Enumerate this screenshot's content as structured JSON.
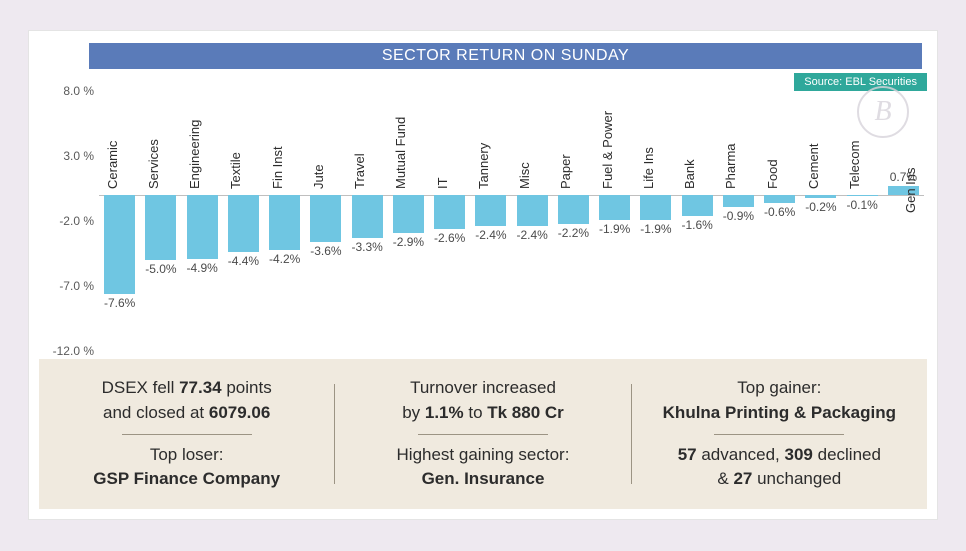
{
  "title": "SECTOR RETURN ON SUNDAY",
  "source": "Source: EBL Securities",
  "watermark": "B",
  "chart": {
    "type": "bar",
    "y_ticks": [
      8.0,
      3.0,
      -2.0,
      -7.0,
      -12.0
    ],
    "ymax": 8.0,
    "ymin": -12.0,
    "baseline": 0,
    "bar_color": "#6fc6e2",
    "background_color": "#ffffff",
    "axis_color": "#bfbfbf",
    "label_fontsize": 13,
    "value_fontsize": 12,
    "title_fontsize": 16,
    "categories": [
      {
        "label": "Ceramic",
        "value": -7.6,
        "text": "-7.6%"
      },
      {
        "label": "Services",
        "value": -5.0,
        "text": "-5.0%"
      },
      {
        "label": "Engineering",
        "value": -4.9,
        "text": "-4.9%"
      },
      {
        "label": "Textile",
        "value": -4.4,
        "text": "-4.4%"
      },
      {
        "label": "Fin Inst",
        "value": -4.2,
        "text": "-4.2%"
      },
      {
        "label": "Jute",
        "value": -3.6,
        "text": "-3.6%"
      },
      {
        "label": "Travel",
        "value": -3.3,
        "text": "-3.3%"
      },
      {
        "label": "Mutual Fund",
        "value": -2.9,
        "text": "-2.9%"
      },
      {
        "label": "IT",
        "value": -2.6,
        "text": "-2.6%"
      },
      {
        "label": "Tannery",
        "value": -2.4,
        "text": "-2.4%"
      },
      {
        "label": "Misc",
        "value": -2.4,
        "text": "-2.4%"
      },
      {
        "label": "Paper",
        "value": -2.2,
        "text": "-2.2%"
      },
      {
        "label": "Fuel & Power",
        "value": -1.9,
        "text": "-1.9%"
      },
      {
        "label": "Life Ins",
        "value": -1.9,
        "text": "-1.9%"
      },
      {
        "label": "Bank",
        "value": -1.6,
        "text": "-1.6%"
      },
      {
        "label": "Pharma",
        "value": -0.9,
        "text": "-0.9%"
      },
      {
        "label": "Food",
        "value": -0.6,
        "text": "-0.6%"
      },
      {
        "label": "Cement",
        "value": -0.2,
        "text": "-0.2%"
      },
      {
        "label": "Telecom",
        "value": -0.1,
        "text": "-0.1%"
      },
      {
        "label": "Gen Ins",
        "value": 0.7,
        "text": "0.7%"
      }
    ]
  },
  "summary": {
    "col1_line1a": "DSEX fell ",
    "col1_line1b": "77.34",
    "col1_line1c": " points",
    "col1_line2a": "and closed at ",
    "col1_line2b": "6079.06",
    "col1_sub_label": "Top loser:",
    "col1_sub_value": "GSP Finance Company",
    "col2_line1a": "Turnover increased",
    "col2_line2a": "by ",
    "col2_line2b": "1.1%",
    "col2_line2c": " to ",
    "col2_line2d": "Tk 880 Cr",
    "col2_sub_label": "Highest gaining sector:",
    "col2_sub_value": "Gen. Insurance",
    "col3_line1": "Top gainer:",
    "col3_line2": "Khulna Printing & Packaging",
    "col3_sub_a": "57",
    "col3_sub_b": " advanced, ",
    "col3_sub_c": "309",
    "col3_sub_d": " declined",
    "col3_sub_e": "& ",
    "col3_sub_f": "27",
    "col3_sub_g": " unchanged"
  },
  "colors": {
    "page_bg": "#eee9f0",
    "card_bg": "#ffffff",
    "title_bar": "#5a7bb9",
    "source_badge": "#2fa89b",
    "summary_bg": "#f0eadf",
    "text": "#2c2c2c"
  }
}
